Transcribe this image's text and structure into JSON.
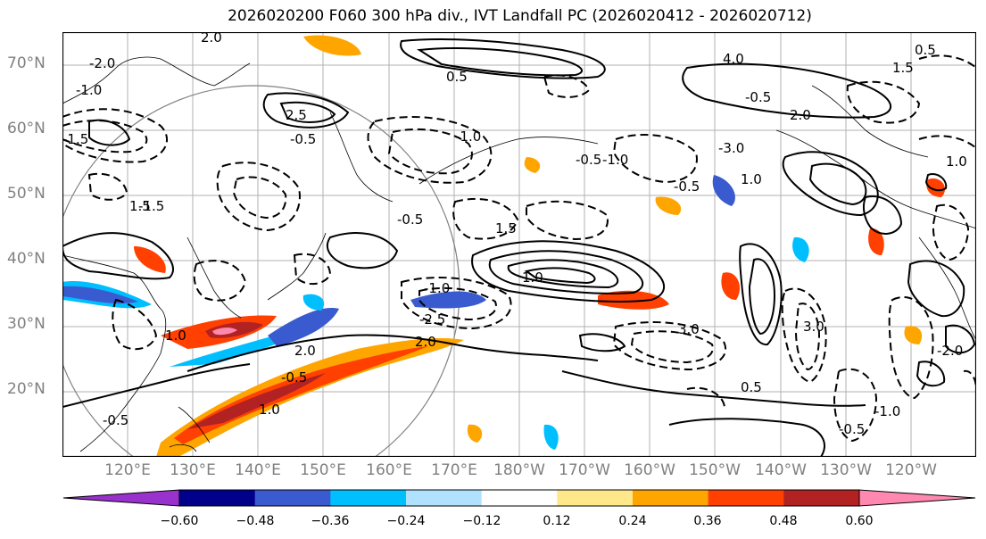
{
  "title": "2026020200 F060 300 hPa div., IVT Landfall PC (2026020412 - 2026020712)",
  "latitude_labels": [
    "70°N",
    "60°N",
    "50°N",
    "40°N",
    "30°N",
    "20°N"
  ],
  "longitude_labels": [
    "120°E",
    "130°E",
    "140°E",
    "150°E",
    "160°E",
    "170°E",
    "180°W",
    "170°W",
    "160°W",
    "150°W",
    "140°W",
    "130°W",
    "120°W"
  ],
  "colorbar": {
    "tick_labels": [
      "−0.60",
      "−0.48",
      "−0.36",
      "−0.24",
      "−0.12",
      "0.12",
      "0.24",
      "0.36",
      "0.48",
      "0.60"
    ],
    "colors": [
      "#9932cc",
      "#00008b",
      "#3a5bcf",
      "#00bfff",
      "#b0e2ff",
      "#ffffff",
      "#ffe88a",
      "#ffa500",
      "#ff4000",
      "#b22222",
      "#ff88b0"
    ]
  },
  "contour_labels": [
    "2.0",
    "1.5",
    "1.0",
    "0.5",
    "-0.5",
    "-1.0",
    "-1.5",
    "-2.0",
    "-2.5",
    "-3.0",
    "4.0",
    "3.0",
    "2.5"
  ],
  "map_extent": {
    "lon_min": 110,
    "lon_max": 250,
    "lat_min": 10,
    "lat_max": 75
  }
}
